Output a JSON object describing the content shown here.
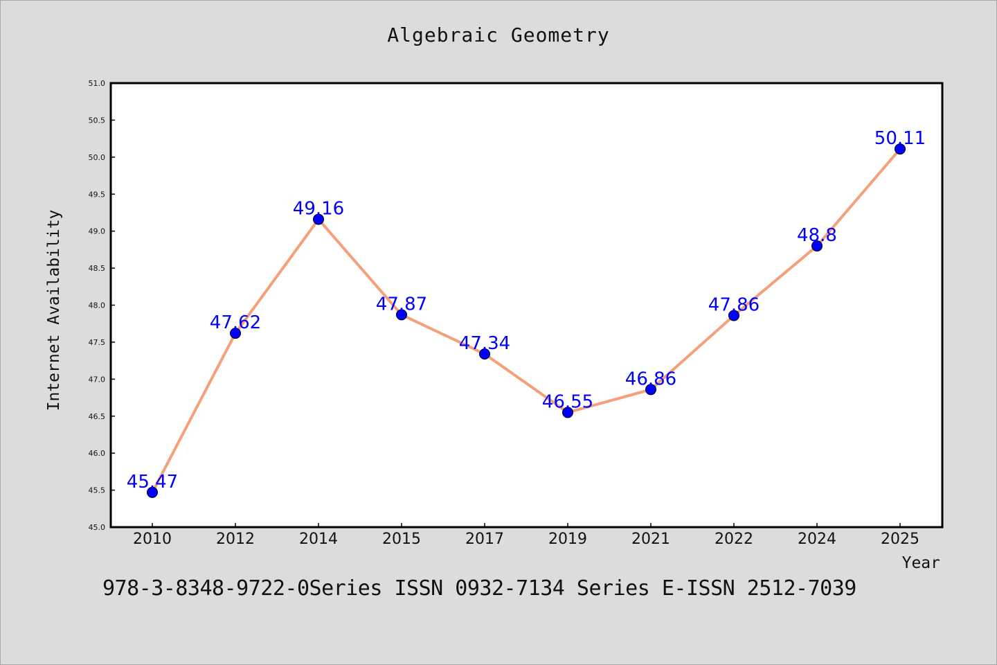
{
  "chart_data": {
    "type": "line",
    "title": "Algebraic Geometry",
    "xlabel": "Year",
    "ylabel": "Internet Availability",
    "categories": [
      "2010",
      "2012",
      "2014",
      "2015",
      "2017",
      "2019",
      "2021",
      "2022",
      "2024",
      "2025"
    ],
    "series": [
      {
        "values": [
          45.47,
          47.62,
          49.16,
          47.87,
          47.34,
          46.55,
          46.86,
          47.86,
          48.8,
          50.11
        ],
        "data_labels": [
          "45.47",
          "47.62",
          "49.16",
          "47.87",
          "47.34",
          "46.55",
          "46.86",
          "47.86",
          "48.8",
          "50.11"
        ],
        "line_color": "#f5a07a",
        "marker_color": "#0000ff"
      }
    ],
    "ylim": [
      45.0,
      51.0
    ],
    "yticks": [
      "45.0",
      "45.5",
      "46.0",
      "46.5",
      "47.0",
      "47.5",
      "48.0",
      "48.5",
      "49.0",
      "49.5",
      "50.0",
      "50.5",
      "51.0"
    ],
    "grid": false,
    "legend": "none"
  },
  "footer": "978-3-8348-9722-0Series ISSN 0932-7134 Series E-ISSN 2512-7039",
  "colors": {
    "background": "#dcdcdc",
    "plot_background": "#ffffff",
    "line": "#f5a07a",
    "marker": "#0000ff",
    "data_label": "#0000ff"
  }
}
